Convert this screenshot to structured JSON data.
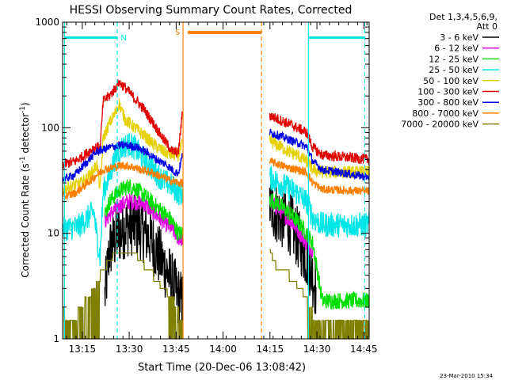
{
  "chart_data": {
    "type": "line",
    "title": "HESSI Observing Summary Count Rates, Corrected",
    "xlabel": "Start Time (20-Dec-06 13:08:42)",
    "ylabel": "Corrected Count Rate (s",
    "ylabel_sup": "-1",
    "ylabel_tail": " detector",
    "ylabel_end": ")",
    "timestamp": "23-Mar-2010 15:34",
    "yscale": "log",
    "ylim": [
      1,
      1000
    ],
    "xlim_minutes": [
      0,
      98
    ],
    "xticks": [
      {
        "m": 6.3,
        "label": "13:15"
      },
      {
        "m": 21.3,
        "label": "13:30"
      },
      {
        "m": 36.3,
        "label": "13:45"
      },
      {
        "m": 51.3,
        "label": "14:00"
      },
      {
        "m": 66.3,
        "label": "14:15"
      },
      {
        "m": 81.3,
        "label": "14:30"
      },
      {
        "m": 96.3,
        "label": "14:45"
      }
    ],
    "yticks": [
      {
        "v": 1,
        "label": "1"
      },
      {
        "v": 10,
        "label": "10"
      },
      {
        "v": 100,
        "label": "100"
      },
      {
        "v": 1000,
        "label": "1000"
      }
    ],
    "legend_header": [
      "Det 1,3,4,5,6,9,",
      "Att 0"
    ],
    "legend_position": "right",
    "gaps": [
      [
        38.5,
        66.2
      ]
    ],
    "markers": {
      "night_label": "N",
      "saa_label": "S",
      "night_bar_color": "#00e5e5",
      "saa_bar_color": "#ff8000",
      "solid_cyan_lines": [
        0.6,
        78.6
      ],
      "dashed_cyan_lines": [
        17.5,
        96.6
      ],
      "solid_orange_lines": [
        38.5
      ],
      "dashed_orange_lines": [
        63.6
      ],
      "night_bars": [
        [
          0.6,
          17.5
        ],
        [
          78.6,
          96.6
        ]
      ],
      "saa_bars": [
        [
          40.0,
          63.6
        ]
      ]
    },
    "series": [
      {
        "name": "3 - 6 keV",
        "color": "#000000",
        "noise": 0.3,
        "points": [
          [
            13.5,
            2.5
          ],
          [
            15,
            7
          ],
          [
            17,
            9
          ],
          [
            20,
            11.5
          ],
          [
            22,
            12
          ],
          [
            25,
            11
          ],
          [
            28,
            9
          ],
          [
            31,
            6
          ],
          [
            34,
            4
          ],
          [
            37,
            2.5
          ],
          [
            38.3,
            2.2
          ],
          [
            66.3,
            18
          ],
          [
            70,
            14
          ],
          [
            73,
            12
          ],
          [
            76,
            8
          ],
          [
            79,
            5
          ],
          [
            81,
            3
          ]
        ]
      },
      {
        "name": "6 - 12 keV",
        "color": "#e000e0",
        "noise": 0.08,
        "points": [
          [
            13.5,
            13
          ],
          [
            15,
            15
          ],
          [
            18,
            18
          ],
          [
            21,
            20
          ],
          [
            23,
            20
          ],
          [
            26,
            19
          ],
          [
            29,
            16
          ],
          [
            32,
            13
          ],
          [
            35,
            11
          ],
          [
            37,
            9
          ],
          [
            38.3,
            9
          ],
          [
            66.3,
            20
          ],
          [
            69,
            17
          ],
          [
            72,
            14
          ],
          [
            75,
            11
          ],
          [
            78,
            8
          ],
          [
            80,
            7
          ]
        ]
      },
      {
        "name": "12 - 25 keV",
        "color": "#00dd00",
        "noise": 0.08,
        "points": [
          [
            13.5,
            15
          ],
          [
            15,
            20
          ],
          [
            18,
            25
          ],
          [
            21,
            28
          ],
          [
            23,
            27
          ],
          [
            26,
            23
          ],
          [
            29,
            19
          ],
          [
            32,
            16
          ],
          [
            35,
            13
          ],
          [
            37,
            10
          ],
          [
            38.3,
            10
          ],
          [
            66.3,
            21
          ],
          [
            69,
            19
          ],
          [
            72,
            16
          ],
          [
            75,
            13
          ],
          [
            78,
            10
          ],
          [
            80,
            8
          ],
          [
            83,
            2.3
          ],
          [
            98,
            2.3
          ]
        ]
      },
      {
        "name": "25 - 50 keV",
        "color": "#00e5e5",
        "noise": 0.12,
        "points": [
          [
            0,
            11
          ],
          [
            5,
            11.5
          ],
          [
            8,
            14
          ],
          [
            10,
            16
          ],
          [
            11,
            9
          ],
          [
            12,
            6
          ],
          [
            13,
            25
          ],
          [
            15,
            35
          ],
          [
            17,
            55
          ],
          [
            19,
            65
          ],
          [
            21,
            70
          ],
          [
            23,
            65
          ],
          [
            26,
            50
          ],
          [
            29,
            40
          ],
          [
            32,
            32
          ],
          [
            35,
            28
          ],
          [
            37,
            24
          ],
          [
            38.3,
            24
          ],
          [
            66.3,
            34
          ],
          [
            69,
            30
          ],
          [
            72,
            27
          ],
          [
            75,
            24
          ],
          [
            78,
            20
          ],
          [
            80,
            14
          ],
          [
            83,
            12
          ],
          [
            98,
            12
          ]
        ]
      },
      {
        "name": "50 - 100 keV",
        "color": "#e5d000",
        "noise": 0.06,
        "points": [
          [
            0,
            26
          ],
          [
            6,
            30
          ],
          [
            9,
            36
          ],
          [
            11,
            45
          ],
          [
            12,
            26
          ],
          [
            13,
            80
          ],
          [
            15,
            110
          ],
          [
            17,
            140
          ],
          [
            18,
            170
          ],
          [
            20,
            120
          ],
          [
            23,
            100
          ],
          [
            26,
            85
          ],
          [
            29,
            70
          ],
          [
            32,
            60
          ],
          [
            35,
            55
          ],
          [
            37,
            55
          ],
          [
            38.3,
            70
          ],
          [
            66.3,
            75
          ],
          [
            69,
            68
          ],
          [
            72,
            60
          ],
          [
            75,
            55
          ],
          [
            78,
            48
          ],
          [
            80,
            40
          ],
          [
            83,
            38
          ],
          [
            98,
            38
          ]
        ]
      },
      {
        "name": "100 - 300 keV",
        "color": "#e00000",
        "noise": 0.05,
        "points": [
          [
            0,
            45
          ],
          [
            4,
            48
          ],
          [
            7,
            55
          ],
          [
            10,
            65
          ],
          [
            12,
            65
          ],
          [
            13,
            180
          ],
          [
            15,
            200
          ],
          [
            17,
            240
          ],
          [
            18,
            270
          ],
          [
            20,
            240
          ],
          [
            23,
            190
          ],
          [
            26,
            150
          ],
          [
            29,
            110
          ],
          [
            32,
            80
          ],
          [
            35,
            60
          ],
          [
            37,
            58
          ],
          [
            38.3,
            140
          ],
          [
            66.3,
            130
          ],
          [
            69,
            120
          ],
          [
            72,
            110
          ],
          [
            75,
            100
          ],
          [
            78,
            90
          ],
          [
            80,
            65
          ],
          [
            83,
            55
          ],
          [
            98,
            50
          ]
        ]
      },
      {
        "name": "300 - 800 keV",
        "color": "#0000e5",
        "noise": 0.04,
        "points": [
          [
            0,
            32
          ],
          [
            4,
            36
          ],
          [
            8,
            48
          ],
          [
            11,
            60
          ],
          [
            13,
            62
          ],
          [
            15,
            65
          ],
          [
            18,
            68
          ],
          [
            21,
            68
          ],
          [
            24,
            65
          ],
          [
            27,
            58
          ],
          [
            30,
            50
          ],
          [
            33,
            45
          ],
          [
            36,
            38
          ],
          [
            37,
            37
          ],
          [
            38.3,
            55
          ],
          [
            66.3,
            90
          ],
          [
            69,
            85
          ],
          [
            72,
            78
          ],
          [
            75,
            72
          ],
          [
            78,
            66
          ],
          [
            80,
            48
          ],
          [
            83,
            40
          ],
          [
            98,
            34
          ]
        ]
      },
      {
        "name": "800 - 7000 keV",
        "color": "#ff8000",
        "noise": 0.04,
        "points": [
          [
            0,
            22
          ],
          [
            4,
            24
          ],
          [
            8,
            30
          ],
          [
            11,
            36
          ],
          [
            13,
            40
          ],
          [
            16,
            42
          ],
          [
            19,
            44
          ],
          [
            22,
            43
          ],
          [
            25,
            40
          ],
          [
            28,
            38
          ],
          [
            31,
            35
          ],
          [
            34,
            32
          ],
          [
            37,
            30
          ],
          [
            38.3,
            30
          ],
          [
            66.3,
            48
          ],
          [
            69,
            45
          ],
          [
            72,
            42
          ],
          [
            75,
            40
          ],
          [
            78,
            38
          ],
          [
            80,
            30
          ],
          [
            83,
            26
          ],
          [
            98,
            25
          ]
        ]
      },
      {
        "name": "7000 - 20000 keV",
        "color": "#808000",
        "noise": 0.0,
        "points": [
          [
            0,
            1.8
          ],
          [
            3,
            1.5
          ],
          [
            6,
            2.0
          ],
          [
            9,
            2.7
          ],
          [
            11,
            3.5
          ],
          [
            13,
            4.5
          ],
          [
            15,
            5.5
          ],
          [
            17,
            6.5
          ],
          [
            20,
            6.5
          ],
          [
            23,
            6.5
          ],
          [
            26,
            5.0
          ],
          [
            29,
            4.0
          ],
          [
            32,
            3.0
          ],
          [
            35,
            2.5
          ],
          [
            37,
            1.8
          ],
          [
            38.3,
            1.6
          ],
          [
            66.3,
            7
          ],
          [
            68,
            5
          ],
          [
            71,
            4.5
          ],
          [
            74,
            3.5
          ],
          [
            77,
            2.7
          ],
          [
            79,
            2.0
          ],
          [
            81,
            1.5
          ],
          [
            98,
            1.5
          ]
        ]
      }
    ]
  }
}
